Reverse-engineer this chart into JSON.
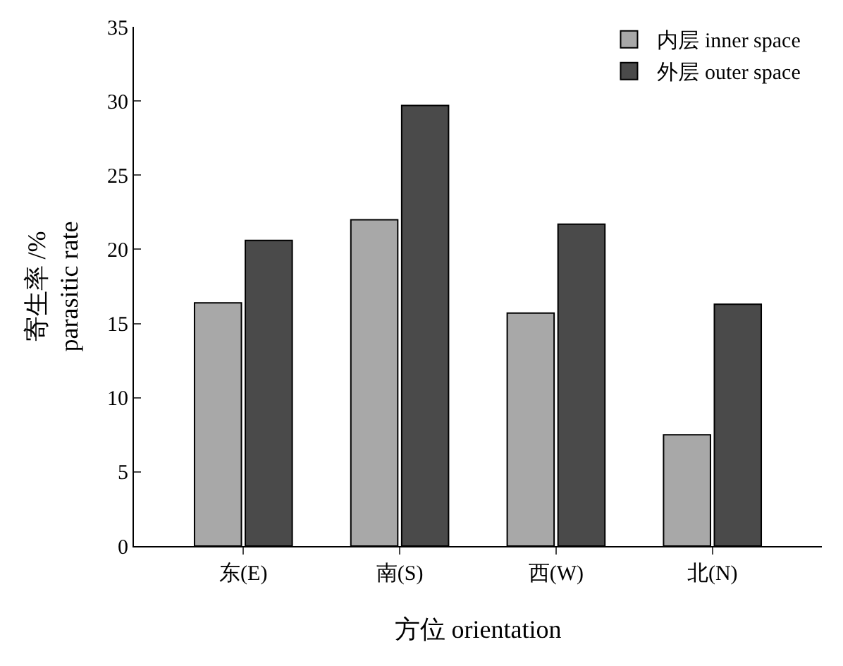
{
  "chart_data": {
    "type": "bar",
    "xlabel": "方位 orientation",
    "ylabel": "寄生率 /%\nparasitic rate",
    "categories": [
      "东(E)",
      "南(S)",
      "西(W)",
      "北(N)"
    ],
    "series": [
      {
        "name": "内层 inner space",
        "color": "#a8a8a8",
        "values": [
          16.4,
          22.0,
          15.7,
          7.5
        ]
      },
      {
        "name": "外层 outer space",
        "color": "#4a4a4a",
        "values": [
          20.6,
          29.7,
          21.7,
          16.3
        ]
      }
    ],
    "ylim": [
      0,
      35
    ],
    "yticks": [
      0,
      5,
      10,
      15,
      20,
      25,
      30,
      35
    ],
    "legend": "top right"
  }
}
